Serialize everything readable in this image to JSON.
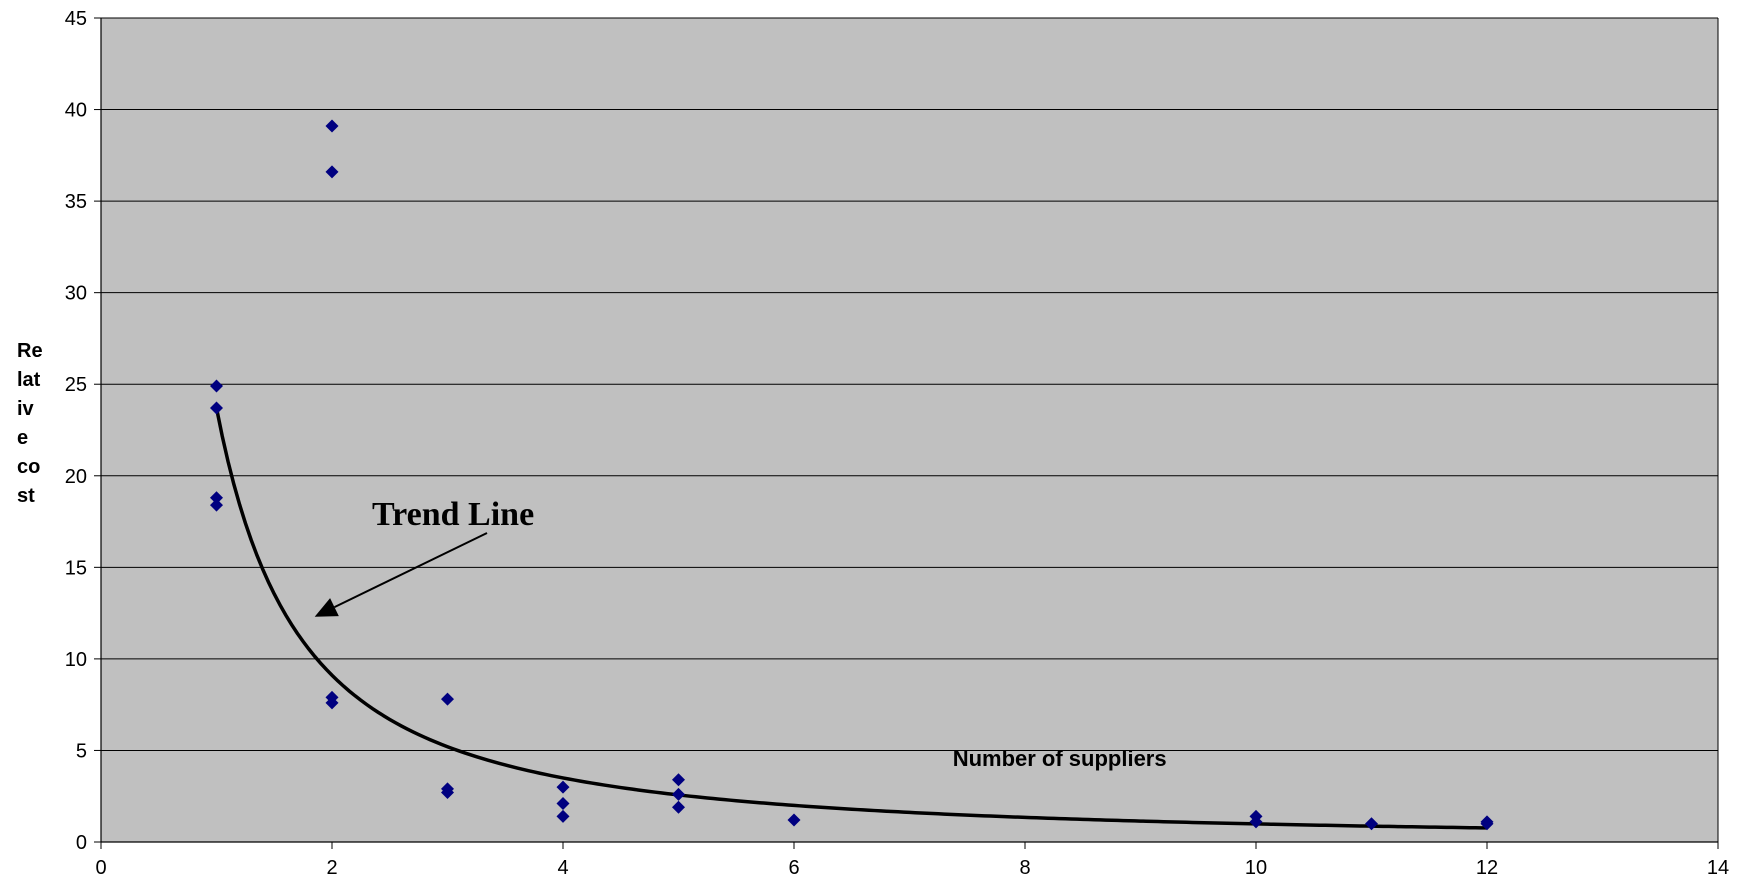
{
  "chart_data": {
    "type": "scatter",
    "xlabel": "Number of suppliers",
    "ylabel_lines": [
      "Re",
      "lat",
      "iv",
      "e",
      "co",
      "st"
    ],
    "xlim": [
      0,
      14
    ],
    "ylim": [
      0,
      45
    ],
    "x_ticks": [
      0,
      2,
      4,
      6,
      8,
      10,
      12,
      14
    ],
    "y_ticks": [
      0,
      5,
      10,
      15,
      20,
      25,
      30,
      35,
      40,
      45
    ],
    "grid": true,
    "plot_background": "#c0c0c0",
    "marker_color": "#000080",
    "points": [
      {
        "x": 1,
        "y": 24.9
      },
      {
        "x": 1,
        "y": 23.7
      },
      {
        "x": 1,
        "y": 18.8
      },
      {
        "x": 1,
        "y": 18.4
      },
      {
        "x": 2,
        "y": 39.1
      },
      {
        "x": 2,
        "y": 36.6
      },
      {
        "x": 2,
        "y": 7.9
      },
      {
        "x": 2,
        "y": 7.6
      },
      {
        "x": 3,
        "y": 7.8
      },
      {
        "x": 3,
        "y": 2.9
      },
      {
        "x": 3,
        "y": 2.7
      },
      {
        "x": 4,
        "y": 3.0
      },
      {
        "x": 4,
        "y": 2.1
      },
      {
        "x": 4,
        "y": 1.4
      },
      {
        "x": 5,
        "y": 3.4
      },
      {
        "x": 5,
        "y": 2.6
      },
      {
        "x": 5,
        "y": 1.9
      },
      {
        "x": 6,
        "y": 1.2
      },
      {
        "x": 10,
        "y": 1.4
      },
      {
        "x": 10,
        "y": 1.1
      },
      {
        "x": 11,
        "y": 1.0
      },
      {
        "x": 12,
        "y": 1.1
      },
      {
        "x": 12,
        "y": 1.0
      }
    ],
    "trend": {
      "type": "power",
      "coefficient": 23.7,
      "exponent": -1.38,
      "x_range": [
        1,
        12
      ]
    },
    "annotation": {
      "text": "Trend Line",
      "target": {
        "x": 1.85,
        "y": 12.3
      }
    }
  }
}
